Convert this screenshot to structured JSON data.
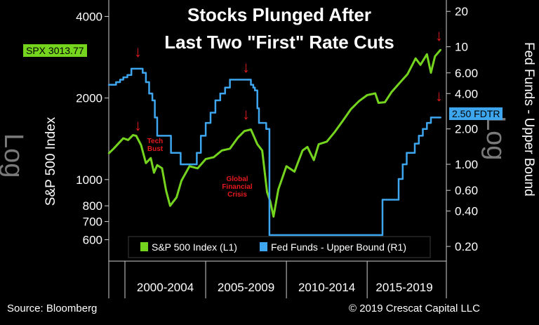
{
  "header": {
    "title_line1": "Stocks Plunged After",
    "title_line2": "Last Two \"First\" Rate Cuts"
  },
  "footer": {
    "source": "Source: Bloomberg",
    "copyright": "© 2019 Crescat Capital LLC"
  },
  "axes": {
    "left_label": "S&P 500 Index",
    "left_scale_mark": "Log",
    "right_label": "Fed Funds - Upper Bound",
    "right_scale_mark": "Log"
  },
  "tags": {
    "spx": "SPX 3013.77",
    "fdtr": "2.50 FDTR"
  },
  "annotations": {
    "tech_bust": "Tech\nBust",
    "gfc": "Global\nFinancial\nCrisis"
  },
  "colors": {
    "spx_series": "#74d41e",
    "fed_series": "#3ea6ef",
    "annotation": "#e6191e",
    "background": "#000000",
    "text": "#ffffff"
  },
  "chart_data": {
    "type": "line",
    "title": "Stocks Plunged After Last Two \"First\" Rate Cuts",
    "x_range": [
      1999.0,
      2019.6
    ],
    "x_tick_labels": [
      "2000-2004",
      "2005-2009",
      "2010-2014",
      "2015-2019"
    ],
    "x_group_ranges": [
      [
        2000,
        2005
      ],
      [
        2005,
        2010
      ],
      [
        2010,
        2015
      ],
      [
        2015,
        2019.6
      ]
    ],
    "y_left": {
      "label": "S&P 500 Index",
      "scale": "log",
      "range": [
        500,
        4600
      ],
      "ticks": [
        600,
        700,
        800,
        1000,
        2000,
        4000
      ]
    },
    "y_right": {
      "label": "Fed Funds - Upper Bound",
      "scale": "log",
      "range": [
        0.15,
        25
      ],
      "ticks": [
        0.2,
        0.4,
        0.6,
        1.0,
        2.0,
        4.0,
        6.0,
        10,
        20
      ],
      "tick_labels": [
        "0.20",
        "0.40",
        "0.60",
        "1.00",
        "2.00",
        "4.00",
        "6.00",
        "10",
        "20"
      ]
    },
    "legend": {
      "placement": "bottom",
      "entries": [
        "S&P 500 Index (L1)",
        "Fed Funds - Upper Bound (R1)"
      ]
    },
    "series": [
      {
        "name": "S&P 500 Index (L1)",
        "axis": "left",
        "x": [
          1999.0,
          1999.3,
          1999.6,
          1999.9,
          2000.2,
          2000.5,
          2000.7,
          2001.0,
          2001.3,
          2001.6,
          2001.8,
          2002.0,
          2002.3,
          2002.55,
          2002.8,
          2003.2,
          2003.5,
          2004.0,
          2004.5,
          2005.0,
          2005.5,
          2006.0,
          2006.5,
          2007.0,
          2007.4,
          2007.8,
          2008.2,
          2008.5,
          2008.8,
          2009.0,
          2009.2,
          2009.5,
          2010.0,
          2010.5,
          2011.0,
          2011.3,
          2011.7,
          2012.0,
          2012.5,
          2013.0,
          2013.5,
          2014.0,
          2014.5,
          2015.0,
          2015.5,
          2015.7,
          2016.1,
          2016.5,
          2017.0,
          2017.5,
          2018.0,
          2018.3,
          2018.7,
          2018.95,
          2019.2,
          2019.55
        ],
        "values": [
          1250,
          1300,
          1360,
          1420,
          1400,
          1460,
          1450,
          1340,
          1150,
          1200,
          1060,
          1130,
          1100,
          910,
          800,
          860,
          990,
          1120,
          1100,
          1190,
          1210,
          1280,
          1300,
          1430,
          1510,
          1530,
          1350,
          1280,
          900,
          830,
          730,
          920,
          1120,
          1070,
          1280,
          1320,
          1180,
          1350,
          1380,
          1500,
          1650,
          1820,
          1950,
          2050,
          2080,
          1920,
          1930,
          2100,
          2270,
          2450,
          2800,
          2650,
          2900,
          2480,
          2850,
          3013.77
        ]
      },
      {
        "name": "Fed Funds - Upper Bound (R1)",
        "axis": "right",
        "x": [
          1999.0,
          1999.45,
          1999.7,
          1999.9,
          2000.15,
          2000.4,
          2001.0,
          2001.1,
          2001.3,
          2001.5,
          2001.7,
          2001.85,
          2002.0,
          2002.85,
          2003.45,
          2004.45,
          2004.7,
          2005.0,
          2005.3,
          2005.6,
          2005.9,
          2006.2,
          2006.5,
          2007.65,
          2007.8,
          2007.95,
          2008.05,
          2008.2,
          2008.3,
          2008.75,
          2008.95,
          2015.95,
          2016.95,
          2017.2,
          2017.45,
          2017.95,
          2018.2,
          2018.45,
          2018.7,
          2018.95,
          2019.55
        ],
        "values": [
          4.75,
          5.0,
          5.25,
          5.5,
          5.75,
          6.5,
          6.5,
          6.0,
          5.0,
          4.0,
          3.5,
          2.5,
          1.75,
          1.25,
          1.0,
          1.25,
          1.75,
          2.25,
          2.75,
          3.5,
          4.0,
          4.5,
          5.25,
          5.25,
          4.75,
          4.5,
          4.25,
          3.0,
          2.25,
          2.0,
          0.25,
          0.5,
          0.75,
          1.0,
          1.25,
          1.5,
          1.75,
          2.0,
          2.25,
          2.5,
          2.5
        ]
      }
    ]
  }
}
